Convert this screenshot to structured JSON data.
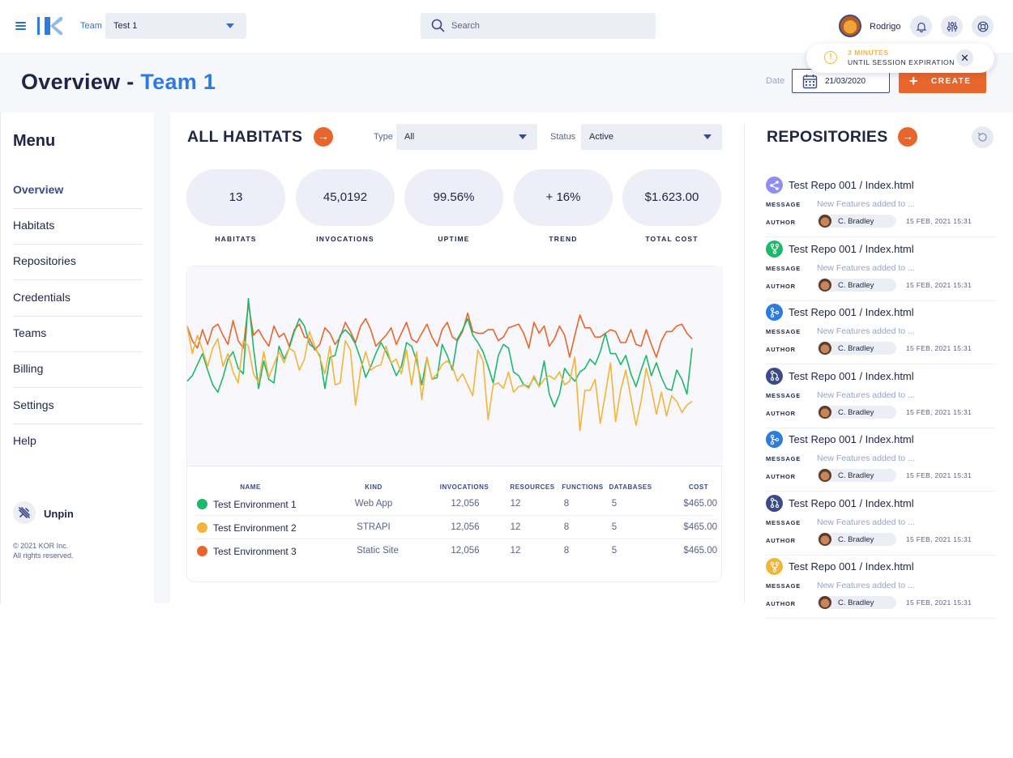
{
  "topbar": {
    "team_label": "Team",
    "team_value": "Test 1",
    "search_placeholder": "Search",
    "user_name": "Rodrigo"
  },
  "header": {
    "title_prefix": "Overview",
    "title_dash": " - ",
    "title_team": "Team 1",
    "date_label": "Date",
    "date_value": "21/03/2020",
    "create_label": "CREATE"
  },
  "session": {
    "line1": "3 MINUTES",
    "line2": "UNTIL SESSION EXPIRATION"
  },
  "sidebar": {
    "title": "Menu",
    "items": [
      {
        "label": "Overview",
        "active": true
      },
      {
        "label": "Habitats"
      },
      {
        "label": "Repositories"
      },
      {
        "label": "Credentials"
      },
      {
        "label": "Teams"
      },
      {
        "label": "Billing"
      },
      {
        "label": "Settings"
      },
      {
        "label": "Help"
      }
    ],
    "unpin_label": "Unpin",
    "copyright_1": "© 2021 KOR Inc.",
    "copyright_2": "All rights reserved."
  },
  "habitats": {
    "title": "ALL HABITATS",
    "type_label": "Type",
    "type_value": "All",
    "status_label": "Status",
    "status_value": "Active",
    "kpis": [
      {
        "value": "13",
        "label": "HABITATS"
      },
      {
        "value": "45,0192",
        "label": "INVOCATIONS"
      },
      {
        "value": "99.56%",
        "label": "UPTIME"
      },
      {
        "value": "+ 16%",
        "label": "TREND"
      },
      {
        "value": "$1.623.00",
        "label": "TOTAL COST"
      }
    ],
    "table": {
      "headers": [
        "NAME",
        "KIND",
        "INVOCATIONS",
        "RESOURCES",
        "FUNCTIONS",
        "DATABASES",
        "COST"
      ],
      "rows": [
        {
          "name": "Test Environment 1",
          "kind": "Web App",
          "invocations": "12,056",
          "resources": "12",
          "functions": "8",
          "databases": "5",
          "cost": "$465.00",
          "color": "#1fb86b"
        },
        {
          "name": "Test Environment 2",
          "kind": "STRAPI",
          "invocations": "12,056",
          "resources": "12",
          "functions": "8",
          "databases": "5",
          "cost": "$465.00",
          "color": "#f2b53a"
        },
        {
          "name": "Test Environment 3",
          "kind": "Static Site",
          "invocations": "12,056",
          "resources": "12",
          "functions": "8",
          "databases": "5",
          "cost": "$465.00",
          "color": "#e8662b"
        }
      ]
    }
  },
  "chart_data": {
    "type": "line",
    "title": "",
    "xlabel": "",
    "ylabel": "",
    "ylim": [
      0,
      100
    ],
    "grid": false,
    "x": [
      1,
      2,
      3,
      4,
      5,
      6,
      7,
      8,
      9,
      10,
      11,
      12,
      13,
      14,
      15,
      16,
      17,
      18,
      19,
      20,
      21,
      22,
      23,
      24,
      25,
      26,
      27,
      28,
      29,
      30,
      31,
      32,
      33,
      34,
      35,
      36,
      37,
      38,
      39,
      40,
      41,
      42,
      43,
      44,
      45,
      46,
      47,
      48,
      49,
      50,
      51,
      52,
      53,
      54,
      55,
      56,
      57,
      58,
      59,
      60,
      61,
      62,
      63,
      64,
      65,
      66,
      67,
      68,
      69,
      70,
      71,
      72,
      73,
      74,
      75,
      76,
      77,
      78,
      79,
      80,
      81,
      82,
      83,
      84,
      85,
      86,
      87,
      88,
      89,
      90,
      91,
      92,
      93,
      94,
      95,
      96,
      97,
      98,
      99,
      100
    ],
    "series": [
      {
        "color": "#e8662b",
        "values": [
          72,
          64,
          60,
          70,
          62,
          71,
          73,
          67,
          62,
          75,
          64,
          60,
          84,
          67,
          70,
          65,
          61,
          72,
          66,
          68,
          61,
          70,
          73,
          66,
          65,
          59,
          62,
          71,
          68,
          62,
          66,
          74,
          69,
          63,
          72,
          76,
          70,
          61,
          64,
          67,
          71,
          62,
          68,
          74,
          65,
          63,
          68,
          73,
          66,
          61,
          70,
          74,
          66,
          64,
          69,
          79,
          69,
          68,
          68,
          70,
          70,
          64,
          66,
          71,
          72,
          73,
          68,
          60,
          74,
          68,
          72,
          61,
          65,
          72,
          67,
          55,
          67,
          78,
          71,
          71,
          66,
          66,
          68,
          70,
          69,
          63,
          63,
          70,
          62,
          61,
          70,
          62,
          55,
          64,
          69,
          69,
          72,
          73,
          68,
          65
        ]
      },
      {
        "color": "#1fb86b",
        "values": [
          42,
          45,
          51,
          57,
          48,
          40,
          36,
          44,
          54,
          58,
          49,
          46,
          87,
          60,
          38,
          53,
          43,
          41,
          61,
          54,
          60,
          69,
          76,
          72,
          62,
          60,
          56,
          38,
          55,
          56,
          67,
          70,
          67,
          62,
          54,
          44,
          50,
          57,
          63,
          58,
          52,
          45,
          50,
          63,
          61,
          53,
          40,
          55,
          43,
          44,
          62,
          56,
          48,
          65,
          70,
          76,
          67,
          63,
          58,
          50,
          41,
          56,
          62,
          60,
          47,
          45,
          40,
          39,
          44,
          39,
          53,
          35,
          28,
          35,
          49,
          45,
          42,
          47,
          49,
          54,
          51,
          58,
          68,
          57,
          57,
          51,
          56,
          46,
          39,
          48,
          56,
          45,
          52,
          44,
          38,
          37,
          48,
          43,
          35,
          60
        ]
      },
      {
        "color": "#f2b53a",
        "values": [
          72,
          57,
          67,
          59,
          50,
          60,
          65,
          50,
          57,
          47,
          41,
          64,
          61,
          46,
          41,
          58,
          44,
          51,
          58,
          52,
          60,
          58,
          48,
          54,
          69,
          61,
          55,
          46,
          61,
          40,
          41,
          64,
          59,
          29,
          48,
          58,
          48,
          50,
          51,
          61,
          52,
          54,
          46,
          59,
          40,
          58,
          32,
          55,
          43,
          46,
          51,
          53,
          50,
          42,
          46,
          40,
          34,
          59,
          53,
          21,
          40,
          41,
          38,
          47,
          36,
          39,
          40,
          38,
          45,
          39,
          43,
          45,
          43,
          47,
          40,
          42,
          55,
          15,
          37,
          37,
          43,
          19,
          35,
          52,
          20,
          37,
          48,
          33,
          18,
          31,
          49,
          38,
          24,
          36,
          23,
          34,
          31,
          25,
          29,
          31
        ]
      }
    ]
  },
  "repos": {
    "title": "REPOSITORIES",
    "message_label": "MESSAGE",
    "author_label": "AUTHOR",
    "items": [
      {
        "title": "Test Repo 001 / Index.html",
        "message": "New Features added to ...",
        "author": "C. Bradley",
        "date": "15 FEB, 2021 15:31",
        "icon": "share-icon",
        "color": "#8f8ff3"
      },
      {
        "title": "Test Repo 001 / Index.html",
        "message": "New Features added to ...",
        "author": "C. Bradley",
        "date": "15 FEB, 2021 15:31",
        "icon": "fork-icon",
        "color": "#1fb86b"
      },
      {
        "title": "Test Repo 001 / Index.html",
        "message": "New Features added to ...",
        "author": "C. Bradley",
        "date": "15 FEB, 2021 15:31",
        "icon": "branch-icon",
        "color": "#2b7be0"
      },
      {
        "title": "Test Repo 001 / Index.html",
        "message": "New Features added to ...",
        "author": "C. Bradley",
        "date": "15 FEB, 2021 15:31",
        "icon": "merge-icon",
        "color": "#3a4a8a"
      },
      {
        "title": "Test Repo 001 / Index.html",
        "message": "New Features added to ...",
        "author": "C. Bradley",
        "date": "15 FEB, 2021 15:31",
        "icon": "branch-icon",
        "color": "#2b7be0"
      },
      {
        "title": "Test Repo 001 / Index.html",
        "message": "New Features added to ...",
        "author": "C. Bradley",
        "date": "15 FEB, 2021 15:31",
        "icon": "merge-icon",
        "color": "#3a4a8a"
      },
      {
        "title": "Test Repo 001 / Index.html",
        "message": "New Features added to ...",
        "author": "C. Bradley",
        "date": "15 FEB, 2021 15:31",
        "icon": "fork-icon",
        "color": "#f2b53a"
      }
    ]
  }
}
